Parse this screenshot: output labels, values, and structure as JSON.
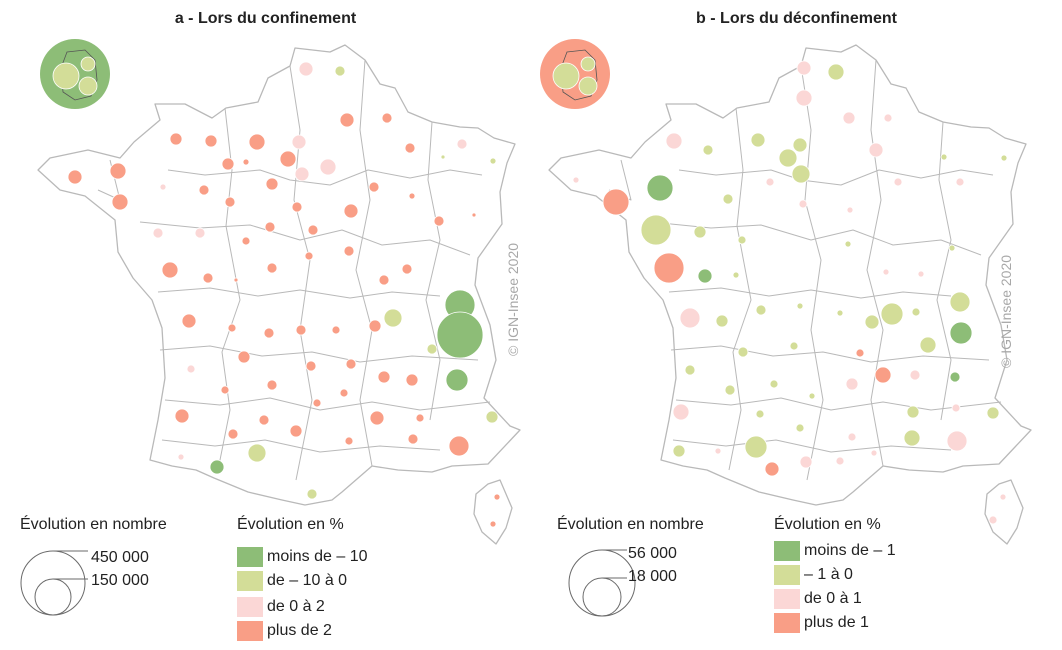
{
  "colors": {
    "dark_green": "#8dbd77",
    "light_green": "#d3dd98",
    "light_pink": "#fbd7d6",
    "salmon": "#f99e86",
    "border": "#b9b9b9"
  },
  "panels": [
    {
      "id": "a",
      "title": "a - Lors du confinement",
      "credit": "© IGN-Insee 2020",
      "size_legend": {
        "title": "Évolution en nombre",
        "values": [
          "450 000",
          "150 000"
        ]
      },
      "color_legend": {
        "title": "Évolution en %",
        "classes": [
          {
            "label": "moins de – 10",
            "color": "dark_green"
          },
          {
            "label": "de – 10 à 0",
            "color": "light_green"
          },
          {
            "label": "de 0 à 2",
            "color": "light_pink"
          },
          {
            "label": "plus de 2",
            "color": "salmon"
          }
        ]
      },
      "inset": {
        "background": "dark_green",
        "circles": [
          "light_green",
          "light_green",
          "light_green"
        ]
      },
      "symbols": [
        [
          347,
          120,
          7,
          "salmon"
        ],
        [
          387,
          118,
          5,
          "salmon"
        ],
        [
          340,
          71,
          5,
          "light_green"
        ],
        [
          306,
          69,
          7,
          "light_pink"
        ],
        [
          176,
          139,
          6,
          "salmon"
        ],
        [
          211,
          141,
          6,
          "salmon"
        ],
        [
          257,
          142,
          8,
          "salmon"
        ],
        [
          299,
          142,
          7,
          "light_pink"
        ],
        [
          288,
          159,
          8,
          "salmon"
        ],
        [
          302,
          174,
          7,
          "light_pink"
        ],
        [
          272,
          184,
          6,
          "salmon"
        ],
        [
          328,
          167,
          8,
          "light_pink"
        ],
        [
          410,
          148,
          5,
          "salmon"
        ],
        [
          462,
          144,
          5,
          "light_pink"
        ],
        [
          443,
          157,
          2,
          "light_green"
        ],
        [
          493,
          161,
          3,
          "light_green"
        ],
        [
          75,
          177,
          7,
          "salmon"
        ],
        [
          118,
          171,
          8,
          "salmon"
        ],
        [
          163,
          187,
          3,
          "light_pink"
        ],
        [
          204,
          190,
          5,
          "salmon"
        ],
        [
          228,
          164,
          6,
          "salmon"
        ],
        [
          246,
          162,
          3,
          "salmon"
        ],
        [
          120,
          202,
          8,
          "salmon"
        ],
        [
          230,
          202,
          5,
          "salmon"
        ],
        [
          297,
          207,
          5,
          "salmon"
        ],
        [
          351,
          211,
          7,
          "salmon"
        ],
        [
          374,
          187,
          5,
          "salmon"
        ],
        [
          412,
          196,
          3,
          "salmon"
        ],
        [
          439,
          221,
          5,
          "salmon"
        ],
        [
          474,
          215,
          2,
          "salmon"
        ],
        [
          158,
          233,
          5,
          "light_pink"
        ],
        [
          200,
          233,
          5,
          "light_pink"
        ],
        [
          246,
          241,
          4,
          "salmon"
        ],
        [
          270,
          227,
          5,
          "salmon"
        ],
        [
          313,
          230,
          5,
          "salmon"
        ],
        [
          170,
          270,
          8,
          "salmon"
        ],
        [
          208,
          278,
          5,
          "salmon"
        ],
        [
          236,
          280,
          2,
          "salmon"
        ],
        [
          272,
          268,
          5,
          "salmon"
        ],
        [
          309,
          256,
          4,
          "salmon"
        ],
        [
          349,
          251,
          5,
          "salmon"
        ],
        [
          384,
          280,
          5,
          "salmon"
        ],
        [
          407,
          269,
          5,
          "salmon"
        ],
        [
          460,
          305,
          15,
          "dark_green"
        ],
        [
          460,
          335,
          23,
          "dark_green"
        ],
        [
          393,
          318,
          9,
          "light_green"
        ],
        [
          375,
          326,
          6,
          "salmon"
        ],
        [
          432,
          349,
          5,
          "light_green"
        ],
        [
          189,
          321,
          7,
          "salmon"
        ],
        [
          232,
          328,
          4,
          "salmon"
        ],
        [
          269,
          333,
          5,
          "salmon"
        ],
        [
          301,
          330,
          5,
          "salmon"
        ],
        [
          336,
          330,
          4,
          "salmon"
        ],
        [
          244,
          357,
          6,
          "salmon"
        ],
        [
          311,
          366,
          5,
          "salmon"
        ],
        [
          191,
          369,
          4,
          "light_pink"
        ],
        [
          272,
          385,
          5,
          "salmon"
        ],
        [
          351,
          364,
          5,
          "salmon"
        ],
        [
          384,
          377,
          6,
          "salmon"
        ],
        [
          412,
          380,
          6,
          "salmon"
        ],
        [
          457,
          380,
          11,
          "dark_green"
        ],
        [
          344,
          393,
          4,
          "salmon"
        ],
        [
          225,
          390,
          4,
          "salmon"
        ],
        [
          182,
          416,
          7,
          "salmon"
        ],
        [
          317,
          403,
          4,
          "salmon"
        ],
        [
          233,
          434,
          5,
          "salmon"
        ],
        [
          264,
          420,
          5,
          "salmon"
        ],
        [
          296,
          431,
          6,
          "salmon"
        ],
        [
          349,
          441,
          4,
          "salmon"
        ],
        [
          377,
          418,
          7,
          "salmon"
        ],
        [
          413,
          439,
          5,
          "salmon"
        ],
        [
          420,
          418,
          4,
          "salmon"
        ],
        [
          459,
          446,
          10,
          "salmon"
        ],
        [
          492,
          417,
          6,
          "light_green"
        ],
        [
          257,
          453,
          9,
          "light_green"
        ],
        [
          181,
          457,
          3,
          "light_pink"
        ],
        [
          217,
          467,
          7,
          "dark_green"
        ],
        [
          312,
          494,
          5,
          "light_green"
        ],
        [
          497,
          497,
          3,
          "salmon"
        ],
        [
          493,
          524,
          3,
          "salmon"
        ]
      ]
    },
    {
      "id": "b",
      "title": "b - Lors du déconfinement",
      "credit": "© IGN-Insee 2020",
      "size_legend": {
        "title": "Évolution en nombre",
        "values": [
          "56 000",
          "18 000"
        ]
      },
      "color_legend": {
        "title": "Évolution en %",
        "classes": [
          {
            "label": "moins de – 1",
            "color": "dark_green"
          },
          {
            "label": "– 1 à 0",
            "color": "light_green"
          },
          {
            "label": "de 0 à 1",
            "color": "light_pink"
          },
          {
            "label": "plus de 1",
            "color": "salmon"
          }
        ]
      },
      "inset": {
        "background": "salmon",
        "circles": [
          "light_green",
          "light_green",
          "light_green"
        ]
      },
      "symbols": [
        [
          836,
          72,
          8,
          "light_green"
        ],
        [
          804,
          68,
          7,
          "light_pink"
        ],
        [
          804,
          98,
          8,
          "light_pink"
        ],
        [
          849,
          118,
          6,
          "light_pink"
        ],
        [
          888,
          118,
          4,
          "light_pink"
        ],
        [
          674,
          141,
          8,
          "light_pink"
        ],
        [
          708,
          150,
          5,
          "light_green"
        ],
        [
          758,
          140,
          7,
          "light_green"
        ],
        [
          800,
          145,
          7,
          "light_green"
        ],
        [
          788,
          158,
          9,
          "light_green"
        ],
        [
          801,
          174,
          9,
          "light_green"
        ],
        [
          770,
          182,
          4,
          "light_pink"
        ],
        [
          876,
          150,
          7,
          "light_pink"
        ],
        [
          944,
          157,
          3,
          "light_green"
        ],
        [
          1004,
          158,
          3,
          "light_green"
        ],
        [
          576,
          180,
          3,
          "light_pink"
        ],
        [
          660,
          188,
          13,
          "dark_green"
        ],
        [
          616,
          202,
          13,
          "salmon"
        ],
        [
          728,
          199,
          5,
          "light_green"
        ],
        [
          803,
          204,
          4,
          "light_pink"
        ],
        [
          850,
          210,
          3,
          "light_pink"
        ],
        [
          898,
          182,
          4,
          "light_pink"
        ],
        [
          960,
          182,
          4,
          "light_pink"
        ],
        [
          656,
          230,
          15,
          "light_green"
        ],
        [
          700,
          232,
          6,
          "light_green"
        ],
        [
          742,
          240,
          4,
          "light_green"
        ],
        [
          848,
          244,
          3,
          "light_green"
        ],
        [
          952,
          248,
          3,
          "light_green"
        ],
        [
          669,
          268,
          15,
          "salmon"
        ],
        [
          705,
          276,
          7,
          "dark_green"
        ],
        [
          736,
          275,
          3,
          "light_green"
        ],
        [
          886,
          272,
          3,
          "light_pink"
        ],
        [
          921,
          274,
          3,
          "light_pink"
        ],
        [
          960,
          302,
          10,
          "light_green"
        ],
        [
          961,
          333,
          11,
          "dark_green"
        ],
        [
          892,
          314,
          11,
          "light_green"
        ],
        [
          872,
          322,
          7,
          "light_green"
        ],
        [
          916,
          312,
          4,
          "light_green"
        ],
        [
          928,
          345,
          8,
          "light_green"
        ],
        [
          690,
          318,
          10,
          "light_pink"
        ],
        [
          722,
          321,
          6,
          "light_green"
        ],
        [
          761,
          310,
          5,
          "light_green"
        ],
        [
          800,
          306,
          3,
          "light_green"
        ],
        [
          840,
          313,
          3,
          "light_green"
        ],
        [
          743,
          352,
          5,
          "light_green"
        ],
        [
          794,
          346,
          4,
          "light_green"
        ],
        [
          860,
          353,
          4,
          "salmon"
        ],
        [
          883,
          375,
          8,
          "salmon"
        ],
        [
          852,
          384,
          6,
          "light_pink"
        ],
        [
          915,
          375,
          5,
          "light_pink"
        ],
        [
          955,
          377,
          5,
          "dark_green"
        ],
        [
          690,
          370,
          5,
          "light_green"
        ],
        [
          730,
          390,
          5,
          "light_green"
        ],
        [
          774,
          384,
          4,
          "light_green"
        ],
        [
          812,
          396,
          3,
          "light_green"
        ],
        [
          913,
          412,
          6,
          "light_green"
        ],
        [
          956,
          408,
          4,
          "light_pink"
        ],
        [
          993,
          413,
          6,
          "light_green"
        ],
        [
          681,
          412,
          8,
          "light_pink"
        ],
        [
          760,
          414,
          4,
          "light_green"
        ],
        [
          800,
          428,
          4,
          "light_green"
        ],
        [
          852,
          437,
          4,
          "light_pink"
        ],
        [
          912,
          438,
          8,
          "light_green"
        ],
        [
          957,
          441,
          10,
          "light_pink"
        ],
        [
          679,
          451,
          6,
          "light_green"
        ],
        [
          718,
          451,
          3,
          "light_pink"
        ],
        [
          756,
          447,
          11,
          "light_green"
        ],
        [
          772,
          469,
          7,
          "salmon"
        ],
        [
          806,
          462,
          6,
          "light_pink"
        ],
        [
          840,
          461,
          4,
          "light_pink"
        ],
        [
          874,
          453,
          3,
          "light_pink"
        ],
        [
          1003,
          497,
          3,
          "light_pink"
        ],
        [
          993,
          520,
          4,
          "light_pink"
        ]
      ]
    }
  ]
}
